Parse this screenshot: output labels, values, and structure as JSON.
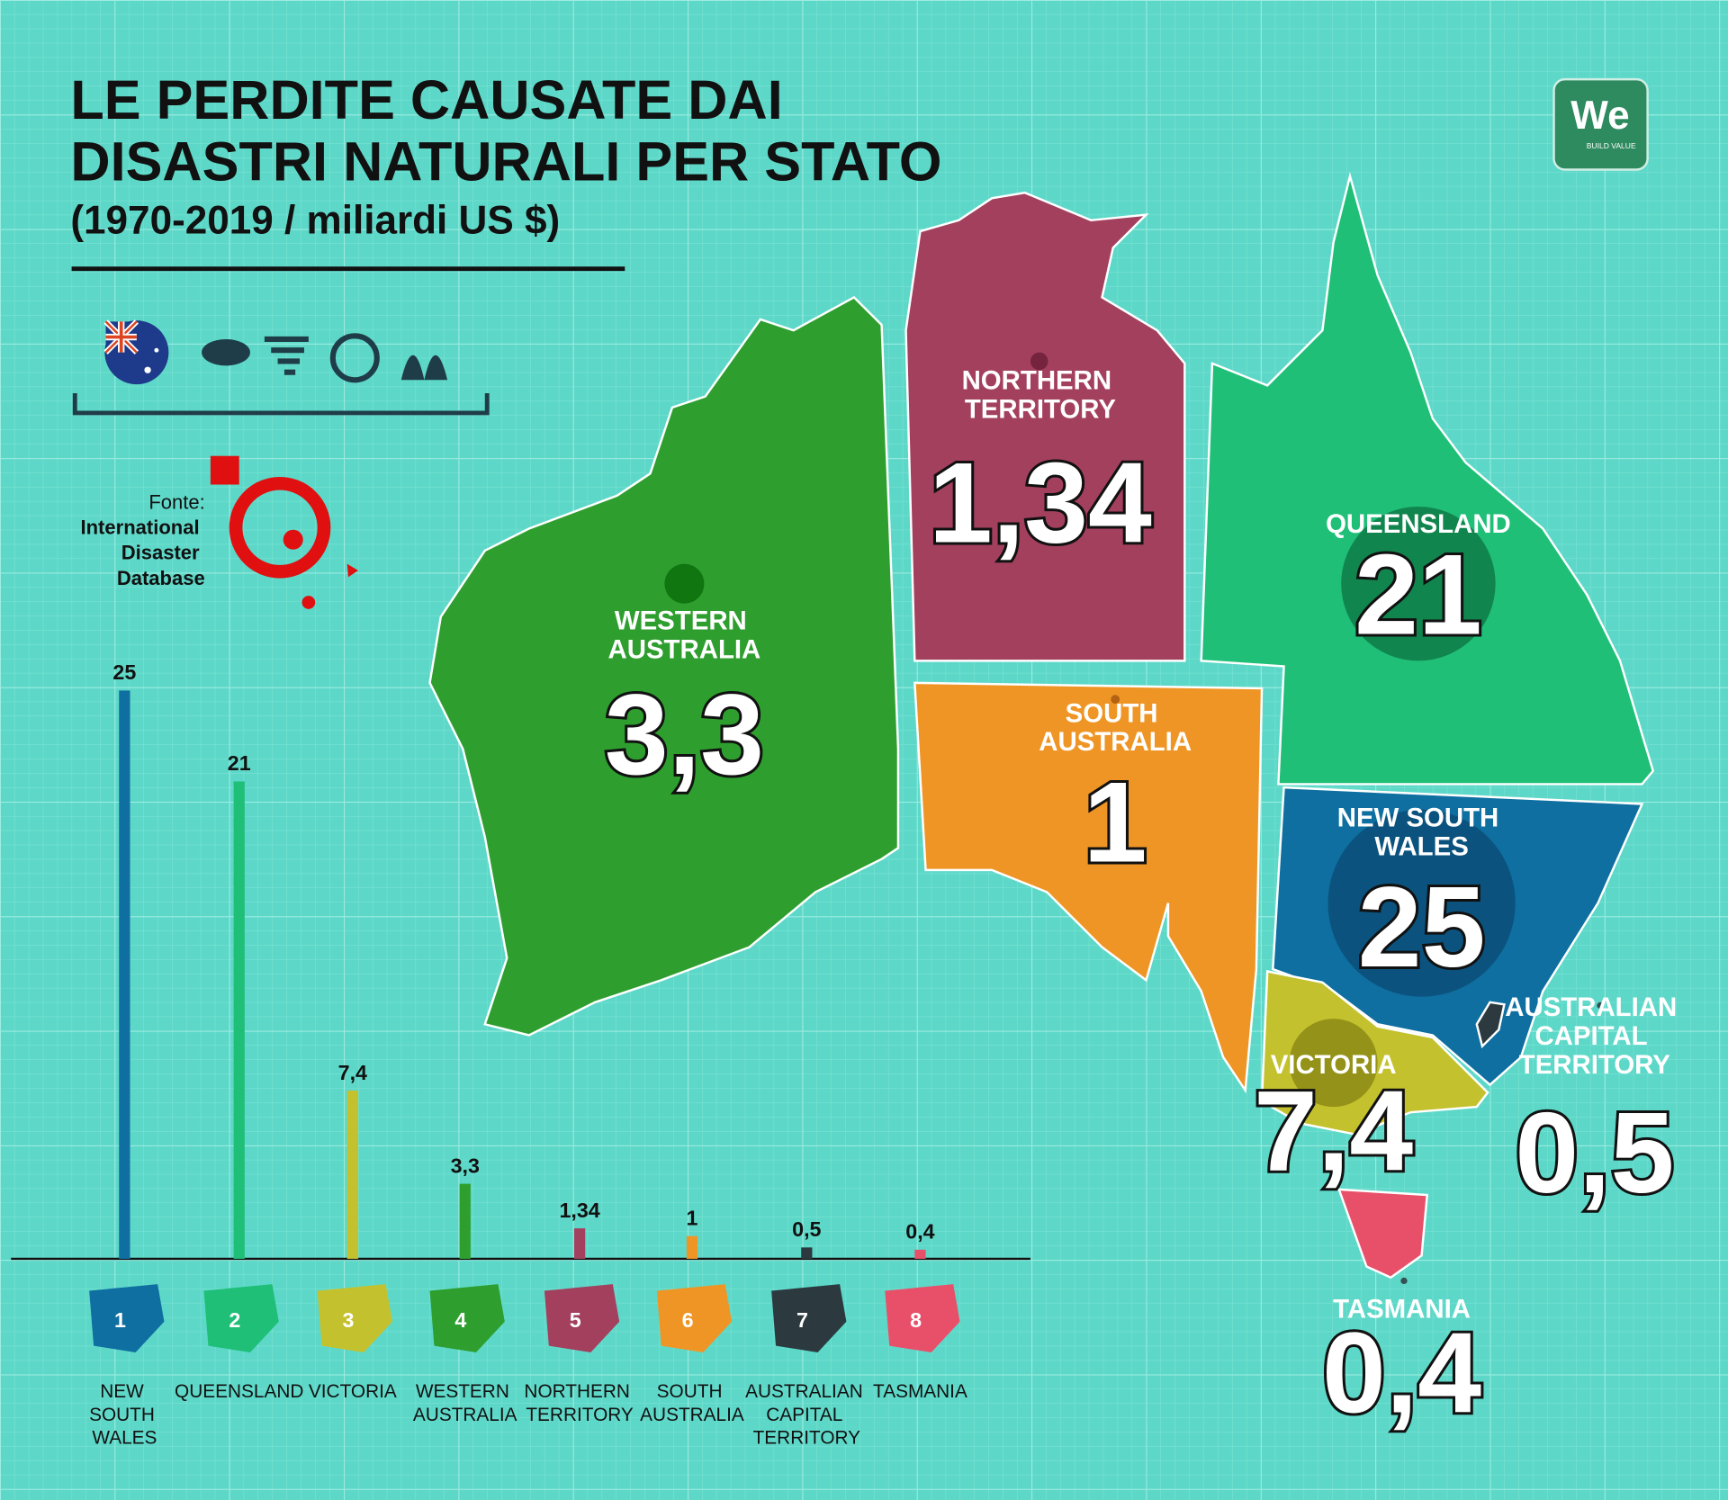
{
  "logo": {
    "text": "We",
    "tagline": "BUILD VALUE"
  },
  "chart_data": {
    "type": "bar",
    "title": "LE PERDITE CAUSATE DAI DISASTRI NATURALI PER STATO",
    "subtitle": "(1970-2019 / miliardi US $)",
    "source_label": "Fonte:",
    "source": "International Disaster Database",
    "categories": [
      "NEW SOUTH WALES",
      "QUEENSLAND",
      "VICTORIA",
      "WESTERN AUSTRALIA",
      "NORTHERN TERRITORY",
      "SOUTH AUSTRALIA",
      "AUSTRALIAN CAPITAL TERRITORY",
      "TASMANIA"
    ],
    "markers": [
      "1",
      "2",
      "3",
      "4",
      "5",
      "6",
      "7",
      "8"
    ],
    "values": [
      25,
      21,
      7.4,
      3.3,
      1.34,
      1,
      0.5,
      0.4
    ],
    "value_labels": [
      "25",
      "21",
      "7,4",
      "3,3",
      "1,34",
      "1",
      "0,5",
      "0,4"
    ],
    "colors": [
      "#0e6fa0",
      "#1fbf78",
      "#c4c12e",
      "#2e9f2e",
      "#a3405e",
      "#ef9525",
      "#2c3a3f",
      "#e8506a"
    ],
    "ylim": [
      0,
      25
    ]
  }
}
